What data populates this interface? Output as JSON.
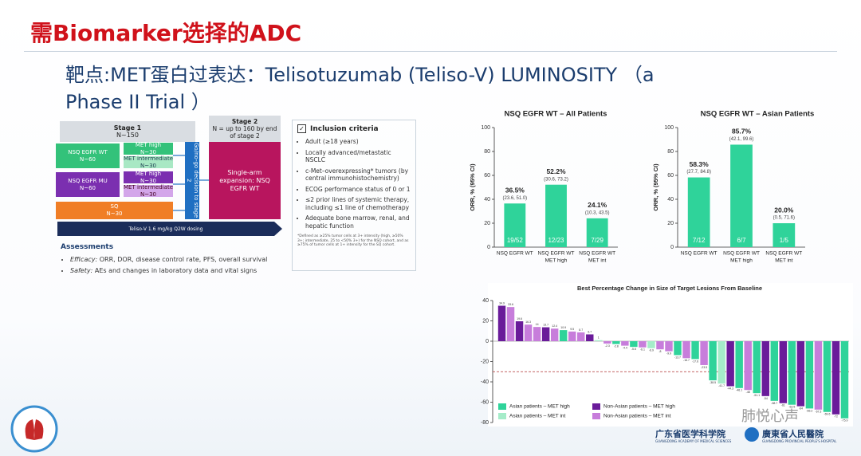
{
  "header": {
    "title": "需Biomarker选择的ADC",
    "subtitle_lines": [
      "靶点:MET蛋白过表达：Telisotuzumab (Teliso-V) LUMINOSITY （a",
      "Phase II Trial ）"
    ]
  },
  "schema": {
    "stage1": {
      "title": "Stage 1",
      "n": "N~150"
    },
    "cohorts": [
      {
        "name": "NSQ EGFR WT",
        "n": "N~60",
        "subgroups": [
          {
            "name": "MET high",
            "n": "N~30"
          },
          {
            "name": "MET intermediate",
            "n": "N~30"
          }
        ]
      },
      {
        "name": "NSQ EGFR MU",
        "n": "N~60",
        "subgroups": [
          {
            "name": "MET high",
            "n": "N~30"
          },
          {
            "name": "MET intermediate",
            "n": "N~30"
          }
        ]
      },
      {
        "name": "SQ",
        "n": "N~30"
      }
    ],
    "decision": "Go/no-go decision to stage 2",
    "stage2": {
      "title": "Stage 2",
      "n": "N = up to 160 by end of stage 2",
      "expansion": "Single-arm expansion: NSQ EGFR WT"
    },
    "dosing": "Teliso-V 1.6 mg/kg Q2W dosing"
  },
  "inclusion": {
    "title": "Inclusion criteria",
    "items": [
      "Adult (≥18 years)",
      "Locally advanced/metastatic NSCLC",
      "c-Met–overexpressing* tumors (by central immunohistochemistry)",
      "ECOG performance status of 0 or 1",
      "≤2 prior lines of systemic therapy, including ≤1 line of chemotherapy",
      "Adequate bone marrow, renal, and hepatic function"
    ],
    "footnote": "*Defined as ≥25% tumor cells at 3+ intensity (high, ≥50% 3+; intermediate, 25 to <50% 3+) for the NSQ cohort, and as ≥75% of tumor cells at 1+ intensity for the SQ cohort."
  },
  "assessments": {
    "title": "Assessments",
    "items": [
      {
        "label": "Efficacy:",
        "text": "ORR, DOR, disease control rate, PFS, overall survival"
      },
      {
        "label": "Safety:",
        "text": "AEs and changes in laboratory data and vital signs"
      }
    ]
  },
  "chart_data": [
    {
      "type": "bar",
      "title": "NSQ EGFR WT – All Patients",
      "ylabel": "ORR, % (95% CI)",
      "categories": [
        [
          "NSQ EGFR WT"
        ],
        [
          "NSQ EGFR WT",
          "MET high"
        ],
        [
          "NSQ EGFR WT",
          "MET int"
        ]
      ],
      "values": [
        36.5,
        52.2,
        24.1
      ],
      "value_labels": [
        "36.5%",
        "52.2%",
        "24.1%"
      ],
      "ci_labels": [
        "(23.6, 51.0)",
        "(30.6, 73.2)",
        "(10.3, 43.5)"
      ],
      "n_labels": [
        "19/52",
        "12/23",
        "7/29"
      ],
      "color": "#2fd39a",
      "ylim": [
        0,
        100
      ],
      "yticks": [
        0,
        20,
        40,
        60,
        80,
        100
      ]
    },
    {
      "type": "bar",
      "title": "NSQ EGFR WT – Asian Patients",
      "ylabel": "ORR, % (95% CI)",
      "categories": [
        [
          "NSQ EGFR WT"
        ],
        [
          "NSQ EGFR WT",
          "MET high"
        ],
        [
          "NSQ EGFR WT",
          "MET int"
        ]
      ],
      "values": [
        58.3,
        85.7,
        20.0
      ],
      "value_labels": [
        "58.3%",
        "85.7%",
        "20.0%"
      ],
      "ci_labels": [
        "(27.7, 84.8)",
        "(42.1, 99.6)",
        "(0.5, 71.6)"
      ],
      "n_labels": [
        "7/12",
        "6/7",
        "1/5"
      ],
      "color": "#2fd39a",
      "ylim": [
        0,
        100
      ],
      "yticks": [
        0,
        20,
        40,
        60,
        80,
        100
      ]
    },
    {
      "type": "waterfall",
      "title": "Best Percentage Change in Size of Target Lesions From Baseline",
      "ylim": [
        -80,
        40
      ],
      "yticks": [
        -80,
        -60,
        -40,
        -20,
        0,
        20,
        40
      ],
      "reference_line": -30,
      "series": [
        {
          "name": "Asian patients – MET high",
          "color": "#2fd39a",
          "values": [
            null,
            null,
            null,
            null,
            null,
            null,
            null,
            10.9,
            null,
            null,
            null,
            null,
            null,
            -2.8,
            null,
            -5.6,
            null,
            null,
            null,
            null,
            -13.7,
            null,
            -17.6,
            null,
            -38.5,
            null,
            null,
            -46.1,
            null,
            -51.1,
            null,
            -58.7,
            null,
            -62.5,
            null,
            -66.2,
            null,
            -69.6,
            null,
            -75.9
          ]
        },
        {
          "name": "Asian patients – MET int",
          "color": "#a5ecc9",
          "values": [
            null,
            null,
            null,
            null,
            null,
            null,
            null,
            null,
            null,
            null,
            null,
            1.0,
            null,
            null,
            null,
            null,
            null,
            -6.9,
            null,
            null,
            null,
            null,
            null,
            null,
            null,
            -41.7,
            null,
            null,
            null,
            null,
            null,
            null,
            null,
            null,
            null,
            null,
            null,
            null,
            null,
            null
          ]
        },
        {
          "name": "Non-Asian patients – MET high",
          "color": "#6a1b9a",
          "values": [
            34.9,
            null,
            19.6,
            null,
            null,
            13.7,
            null,
            null,
            null,
            null,
            6.7,
            null,
            null,
            null,
            null,
            null,
            null,
            null,
            null,
            null,
            null,
            null,
            null,
            null,
            null,
            null,
            -44.3,
            null,
            null,
            null,
            -54.0,
            null,
            -61.0,
            null,
            -64.0,
            null,
            null,
            null,
            -72.0,
            null
          ]
        },
        {
          "name": "Non-Asian patients – MET int",
          "color": "#c77ddb",
          "values": [
            null,
            33.6,
            null,
            16.3,
            14.0,
            null,
            12.4,
            null,
            9.5,
            8.7,
            null,
            null,
            -2.3,
            null,
            -4.4,
            null,
            -6.1,
            null,
            -8.0,
            -9.9,
            null,
            -16.7,
            null,
            -23.5,
            null,
            null,
            null,
            null,
            -48.0,
            null,
            null,
            null,
            null,
            null,
            null,
            null,
            -67.3,
            null,
            null,
            null
          ]
        }
      ]
    }
  ],
  "footer": {
    "logos": [
      {
        "name": "广东省医学科学院",
        "english": "GUANGDONG ACADEMY OF MEDICAL SCIENCES"
      },
      {
        "name": "廣東省人民醫院",
        "english": "GUANGDONG PROVINCIAL PEOPLE'S HOSPITAL"
      }
    ],
    "watermark": "肺悦心声"
  }
}
